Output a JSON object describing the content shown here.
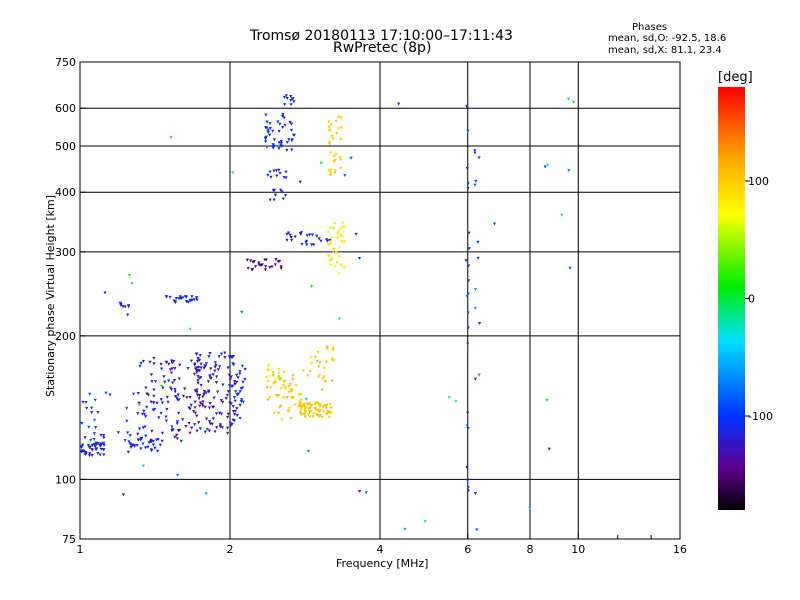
{
  "chart_data": {
    "type": "scatter",
    "title": "Tromsø 20180113 17:10:00–17:11:43",
    "subtitle": "RwPretec (8p)",
    "xlabel": "Frequency [MHz]",
    "ylabel": "Stationary phase Virtual Height [km]",
    "x_scale": "log",
    "y_scale": "log",
    "xlim": [
      1,
      16
    ],
    "ylim": [
      75,
      750
    ],
    "x_ticks": [
      1,
      2,
      4,
      6,
      8,
      10,
      16
    ],
    "x_tick_labels": [
      "1",
      "2",
      "4",
      "6",
      "8",
      "10",
      "16"
    ],
    "y_ticks": [
      75,
      100,
      200,
      300,
      400,
      500,
      600,
      750
    ],
    "y_tick_labels": [
      "75",
      "100",
      "200",
      "300",
      "400",
      "500",
      "600",
      "750"
    ],
    "x_grid": [
      2,
      4,
      6,
      8,
      10
    ],
    "y_grid": [
      100,
      200,
      300,
      400,
      500,
      600
    ],
    "grid": true,
    "phases_header": "Phases",
    "phases_o": "mean, sd,O: -92.5, 18.6",
    "phases_x": "mean, sd,X: 81.1, 23.4",
    "colorbar": {
      "label": "[deg]",
      "ticks": [
        100,
        0,
        -100
      ],
      "tick_labels": [
        "100",
        "0",
        "-100"
      ],
      "range": [
        -180,
        180
      ]
    },
    "clusters": [
      {
        "fmin": 1.0,
        "fmax": 1.12,
        "hmin": 112,
        "hmax": 120,
        "phase": -110,
        "spread": 14,
        "n": 45
      },
      {
        "fmin": 1.0,
        "fmax": 1.35,
        "hmin": 118,
        "hmax": 152,
        "phase": -105,
        "spread": 20,
        "n": 35
      },
      {
        "fmin": 1.25,
        "fmax": 1.45,
        "hmin": 114,
        "hmax": 122,
        "phase": -112,
        "spread": 12,
        "n": 30
      },
      {
        "fmin": 1.3,
        "fmax": 1.75,
        "hmin": 120,
        "hmax": 180,
        "phase": -120,
        "spread": 22,
        "n": 120
      },
      {
        "fmin": 1.7,
        "fmax": 2.05,
        "hmin": 125,
        "hmax": 185,
        "phase": -125,
        "spread": 20,
        "n": 110
      },
      {
        "fmin": 2.0,
        "fmax": 2.15,
        "hmin": 130,
        "hmax": 175,
        "phase": -105,
        "spread": 15,
        "n": 30
      },
      {
        "fmin": 2.35,
        "fmax": 2.85,
        "hmin": 133,
        "hmax": 170,
        "phase": 105,
        "spread": 12,
        "n": 60
      },
      {
        "fmin": 2.75,
        "fmax": 3.2,
        "hmin": 135,
        "hmax": 145,
        "phase": 105,
        "spread": 10,
        "n": 60
      },
      {
        "fmin": 2.85,
        "fmax": 3.25,
        "hmin": 150,
        "hmax": 190,
        "phase": 108,
        "spread": 14,
        "n": 25
      },
      {
        "fmin": 2.35,
        "fmax": 2.55,
        "hmin": 160,
        "hmax": 175,
        "phase": 60,
        "spread": 12,
        "n": 12
      },
      {
        "fmin": 1.48,
        "fmax": 1.72,
        "hmin": 235,
        "hmax": 242,
        "phase": -110,
        "spread": 8,
        "n": 25
      },
      {
        "fmin": 1.2,
        "fmax": 1.28,
        "hmin": 230,
        "hmax": 236,
        "phase": -110,
        "spread": 8,
        "n": 8
      },
      {
        "fmin": 2.15,
        "fmax": 2.55,
        "hmin": 275,
        "hmax": 290,
        "phase": -140,
        "spread": 12,
        "n": 25
      },
      {
        "fmin": 2.6,
        "fmax": 3.2,
        "hmin": 310,
        "hmax": 330,
        "phase": -110,
        "spread": 12,
        "n": 25
      },
      {
        "fmin": 3.1,
        "fmax": 3.4,
        "hmin": 270,
        "hmax": 345,
        "phase": 80,
        "spread": 18,
        "n": 35
      },
      {
        "fmin": 2.35,
        "fmax": 2.6,
        "hmin": 380,
        "hmax": 450,
        "phase": -110,
        "spread": 10,
        "n": 20
      },
      {
        "fmin": 2.35,
        "fmax": 2.7,
        "hmin": 490,
        "hmax": 590,
        "phase": -105,
        "spread": 10,
        "n": 45
      },
      {
        "fmin": 2.55,
        "fmax": 2.7,
        "hmin": 610,
        "hmax": 640,
        "phase": -110,
        "spread": 10,
        "n": 10
      },
      {
        "fmin": 3.15,
        "fmax": 3.35,
        "hmin": 430,
        "hmax": 580,
        "phase": 100,
        "spread": 10,
        "n": 30
      },
      {
        "fmin": 5.95,
        "fmax": 6.05,
        "hmin": 85,
        "hmax": 640,
        "phase": -100,
        "spread": 25,
        "n": 22
      },
      {
        "fmin": 6.2,
        "fmax": 6.35,
        "hmin": 78,
        "hmax": 560,
        "phase": -90,
        "spread": 35,
        "n": 14
      },
      {
        "fmin": 1.05,
        "fmax": 10.5,
        "hmin": 78,
        "hmax": 700,
        "phase": -60,
        "spread": 90,
        "n": 45
      }
    ]
  }
}
